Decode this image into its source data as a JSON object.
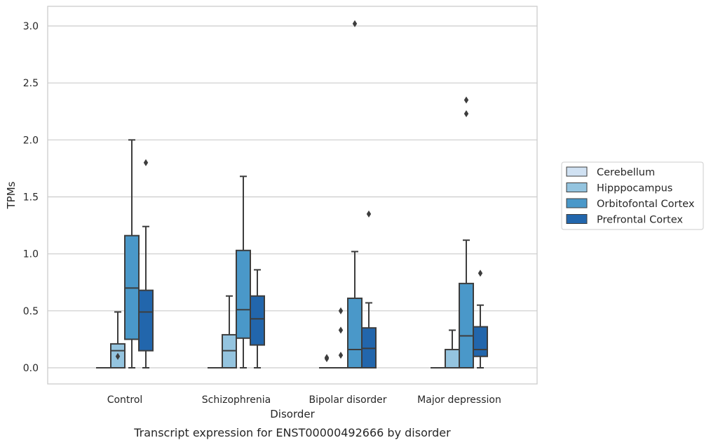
{
  "chart_data": {
    "type": "box",
    "caption": "Transcript expression for ENST00000492666 by disorder",
    "xlabel": "Disorder",
    "ylabel": "TPMs",
    "ylim": [
      -0.15,
      3.18
    ],
    "yticks": [
      0.0,
      0.5,
      1.0,
      1.5,
      2.0,
      2.5,
      3.0
    ],
    "ytick_labels": [
      "0.0",
      "0.5",
      "1.0",
      "1.5",
      "2.0",
      "2.5",
      "3.0"
    ],
    "grid": true,
    "legend_position": "right-outside",
    "categories": [
      "Control",
      "Schizophrenia",
      "Bipolar disorder",
      "Major depression"
    ],
    "series": [
      {
        "name": "Cerebellum",
        "color": "#d0e1f2",
        "boxes": [
          {
            "whisker_low": 0,
            "q1": 0,
            "median": 0,
            "q3": 0,
            "whisker_high": 0,
            "outliers": []
          },
          {
            "whisker_low": 0,
            "q1": 0,
            "median": 0,
            "q3": 0,
            "whisker_high": 0,
            "outliers": []
          },
          {
            "whisker_low": 0,
            "q1": 0,
            "median": 0,
            "q3": 0,
            "whisker_high": 0,
            "outliers": [
              0.08,
              0.09
            ]
          },
          {
            "whisker_low": 0,
            "q1": 0,
            "median": 0,
            "q3": 0,
            "whisker_high": 0,
            "outliers": []
          }
        ]
      },
      {
        "name": "Hipppocampus",
        "color": "#94c4df",
        "boxes": [
          {
            "whisker_low": 0,
            "q1": 0,
            "median": 0.15,
            "q3": 0.21,
            "whisker_high": 0.49,
            "outliers": [
              0.1
            ]
          },
          {
            "whisker_low": 0,
            "q1": 0,
            "median": 0.15,
            "q3": 0.29,
            "whisker_high": 0.63,
            "outliers": []
          },
          {
            "whisker_low": 0,
            "q1": 0,
            "median": 0,
            "q3": 0,
            "whisker_high": 0,
            "outliers": [
              0.11,
              0.33,
              0.5
            ]
          },
          {
            "whisker_low": 0,
            "q1": 0,
            "median": 0,
            "q3": 0.16,
            "whisker_high": 0.33,
            "outliers": []
          }
        ]
      },
      {
        "name": "Orbitofontal Cortex",
        "color": "#4a98c9",
        "boxes": [
          {
            "whisker_low": 0,
            "q1": 0.25,
            "median": 0.7,
            "q3": 1.16,
            "whisker_high": 2.0,
            "outliers": []
          },
          {
            "whisker_low": 0,
            "q1": 0.26,
            "median": 0.51,
            "q3": 1.03,
            "whisker_high": 1.68,
            "outliers": []
          },
          {
            "whisker_low": 0,
            "q1": 0,
            "median": 0.16,
            "q3": 0.61,
            "whisker_high": 1.02,
            "outliers": [
              3.02
            ]
          },
          {
            "whisker_low": 0,
            "q1": 0,
            "median": 0.28,
            "q3": 0.74,
            "whisker_high": 1.12,
            "outliers": [
              2.23,
              2.35
            ]
          }
        ]
      },
      {
        "name": "Prefrontal Cortex",
        "color": "#2266ac",
        "boxes": [
          {
            "whisker_low": 0,
            "q1": 0.15,
            "median": 0.49,
            "q3": 0.68,
            "whisker_high": 1.24,
            "outliers": [
              1.8
            ]
          },
          {
            "whisker_low": 0,
            "q1": 0.2,
            "median": 0.43,
            "q3": 0.63,
            "whisker_high": 0.86,
            "outliers": []
          },
          {
            "whisker_low": 0,
            "q1": 0,
            "median": 0.17,
            "q3": 0.35,
            "whisker_high": 0.57,
            "outliers": [
              1.35
            ]
          },
          {
            "whisker_low": 0,
            "q1": 0.1,
            "median": 0.16,
            "q3": 0.36,
            "whisker_high": 0.55,
            "outliers": [
              0.83
            ]
          }
        ]
      }
    ]
  }
}
